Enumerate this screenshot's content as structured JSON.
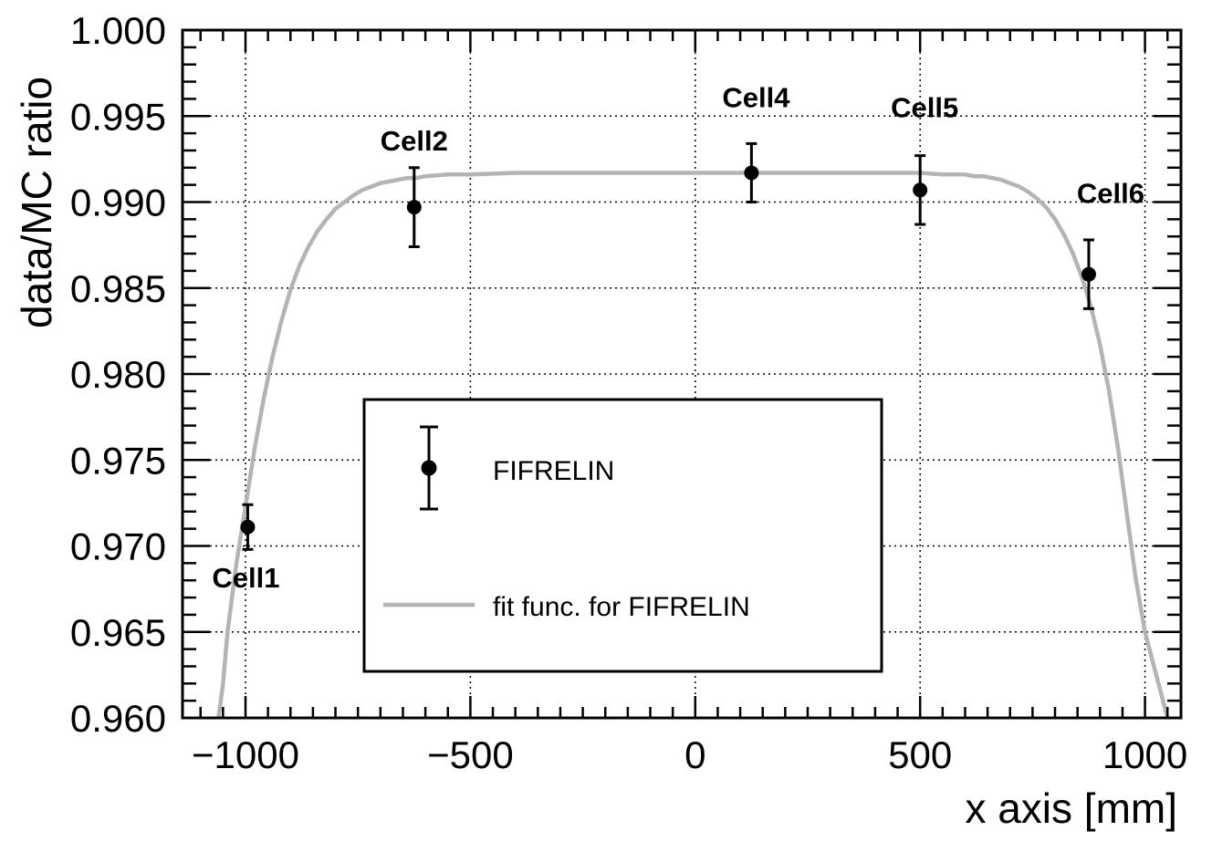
{
  "chart_data": {
    "type": "scatter",
    "xlabel": "x axis [mm]",
    "ylabel": "data/MC ratio",
    "xlim": [
      -1140,
      1080
    ],
    "ylim": [
      0.96,
      1.0
    ],
    "x_ticks": [
      -1000,
      -500,
      0,
      500,
      1000
    ],
    "x_tick_labels": [
      "−1000",
      "−500",
      "0",
      "500",
      "1000"
    ],
    "y_ticks": [
      0.96,
      0.965,
      0.97,
      0.975,
      0.98,
      0.985,
      0.99,
      0.995,
      1.0
    ],
    "y_tick_labels": [
      "0.960",
      "0.965",
      "0.970",
      "0.975",
      "0.980",
      "0.985",
      "0.990",
      "0.995",
      "1.000"
    ],
    "grid": true,
    "legend_position": "center-bottom",
    "series": [
      {
        "name": "FIFRELIN",
        "color": "#000000",
        "points": [
          {
            "label": "Cell1",
            "x": -995,
            "y": 0.9711,
            "err": 0.0013
          },
          {
            "label": "Cell2",
            "x": -625,
            "y": 0.9897,
            "err": 0.0023
          },
          {
            "label": "Cell4",
            "x": 125,
            "y": 0.9917,
            "err": 0.0017
          },
          {
            "label": "Cell5",
            "x": 500,
            "y": 0.9907,
            "err": 0.002
          },
          {
            "label": "Cell6",
            "x": 875,
            "y": 0.9858,
            "err": 0.002
          }
        ]
      },
      {
        "name": "fit func. for FIFRELIN",
        "color": "#b4b4b4",
        "type": "line",
        "x": [
          -1060,
          -1050,
          -1040,
          -1020,
          -1000,
          -980,
          -960,
          -940,
          -920,
          -900,
          -880,
          -860,
          -840,
          -820,
          -800,
          -780,
          -760,
          -740,
          -720,
          -700,
          -680,
          -660,
          -640,
          -620,
          -600,
          -550,
          -500,
          -400,
          -300,
          -200,
          -100,
          0,
          100,
          200,
          300,
          400,
          500,
          550,
          600,
          620,
          640,
          660,
          680,
          700,
          720,
          740,
          760,
          780,
          800,
          820,
          840,
          860,
          880,
          900,
          920,
          940,
          960,
          980,
          1000,
          1020,
          1040,
          1050
        ],
        "y": [
          0.96,
          0.962,
          0.965,
          0.969,
          0.9723,
          0.9756,
          0.9785,
          0.981,
          0.9831,
          0.9849,
          0.9863,
          0.9874,
          0.9883,
          0.989,
          0.9896,
          0.99,
          0.9904,
          0.9907,
          0.9909,
          0.9911,
          0.9912,
          0.9913,
          0.9914,
          0.9914,
          0.9915,
          0.9916,
          0.9916,
          0.9917,
          0.9917,
          0.9917,
          0.9917,
          0.9917,
          0.9917,
          0.9917,
          0.9917,
          0.9917,
          0.9917,
          0.9916,
          0.9916,
          0.9915,
          0.9915,
          0.9914,
          0.9913,
          0.9911,
          0.9909,
          0.9906,
          0.9902,
          0.9897,
          0.989,
          0.9881,
          0.987,
          0.9856,
          0.9839,
          0.9817,
          0.979,
          0.9757,
          0.9718,
          0.968,
          0.965,
          0.963,
          0.961,
          0.96
        ]
      }
    ],
    "legend": {
      "entries": [
        {
          "label": "FIFRELIN",
          "marker": "point-with-errorbar",
          "color": "#000000"
        },
        {
          "label": "fit func. for FIFRELIN",
          "marker": "line",
          "color": "#b4b4b4"
        }
      ]
    }
  }
}
